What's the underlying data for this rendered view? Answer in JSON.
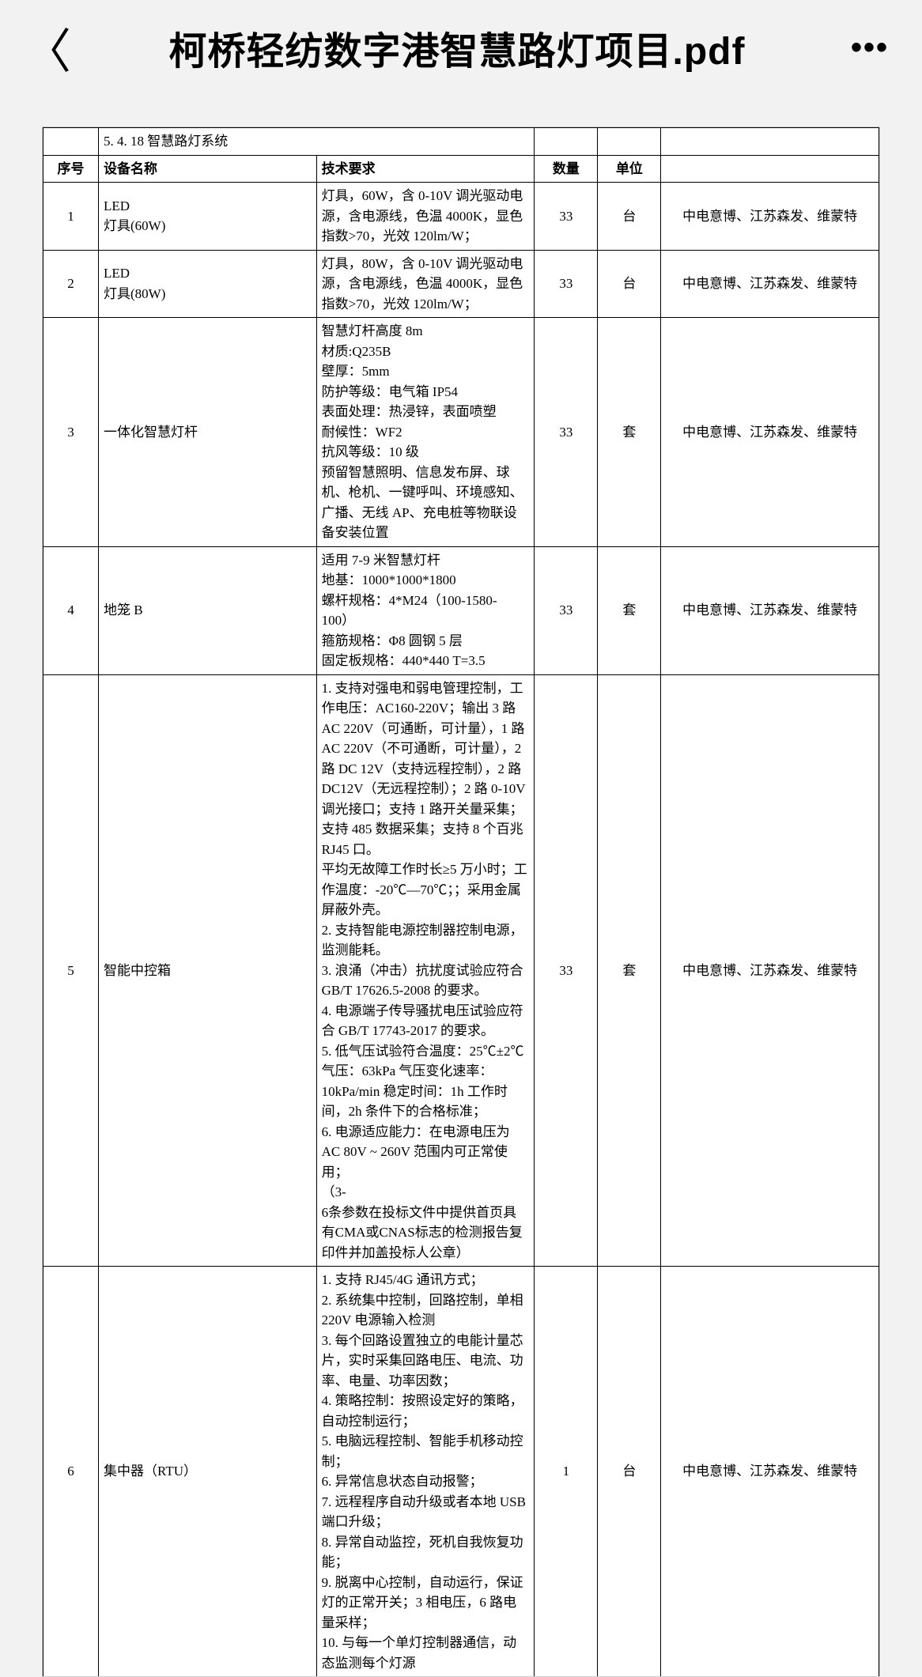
{
  "header": {
    "title": "柯桥轻纺数字港智慧路灯项目.pdf",
    "back_glyph": "〈",
    "more_glyph": "•••"
  },
  "section": {
    "number": "5. 4. 18",
    "title": "智慧路灯系统"
  },
  "columns": {
    "idx": "序号",
    "name": "设备名称",
    "req": "技术要求",
    "qty": "数量",
    "unit": "单位",
    "supp": ""
  },
  "rows": [
    {
      "idx": "1",
      "name": "LED\n灯具(60W)",
      "req": "灯具，60W，含 0-10V 调光驱动电源，含电源线，色温 4000K，显色指数>70，光效 120lm/W；",
      "qty": "33",
      "unit": "台",
      "supp": "中电意博、江苏森发、维蒙特"
    },
    {
      "idx": "2",
      "name": "LED\n灯具(80W)",
      "req": "灯具，80W，含 0-10V 调光驱动电源，含电源线，色温 4000K，显色指数>70，光效 120lm/W；",
      "qty": "33",
      "unit": "台",
      "supp": "中电意博、江苏森发、维蒙特"
    },
    {
      "idx": "3",
      "name": "一体化智慧灯杆",
      "req": "智慧灯杆高度 8m\n材质:Q235B\n壁厚：5mm\n防护等级：电气箱 IP54\n表面处理：热浸锌，表面喷塑\n耐候性：WF2\n抗风等级：10 级\n预留智慧照明、信息发布屏、球机、枪机、一键呼叫、环境感知、广播、无线 AP、充电桩等物联设\n备安装位置",
      "qty": "33",
      "unit": "套",
      "supp": "中电意博、江苏森发、维蒙特"
    },
    {
      "idx": "4",
      "name": "地笼 B",
      "req": "适用 7-9 米智慧灯杆\n地基：1000*1000*1800\n螺杆规格：4*M24（100-1580-100）\n箍筋规格：Φ8 圆钢 5 层\n固定板规格：440*440 T=3.5",
      "qty": "33",
      "unit": "套",
      "supp": "中电意博、江苏森发、维蒙特"
    },
    {
      "idx": "5",
      "name": "智能中控箱",
      "req": "1. 支持对强电和弱电管理控制，工作电压：AC160-220V；输出 3 路 AC 220V（可通断，可计量），1 路 AC 220V（不可通断，可计量），2 路 DC 12V（支持远程控制），2 路 DC12V（无远程控制）；2 路 0-10V 调光接口；支持 1 路开关量采集；支持 485 数据采集；支持 8 个百兆 RJ45 口。\n平均无故障工作时长≥5 万小时；工作温度：-20℃—70℃；；采用金属屏蔽外壳。\n2. 支持智能电源控制器控制电源，监测能耗。\n3. 浪涌（冲击）抗扰度试验应符合 GB/T 17626.5-2008 的要求。\n4. 电源端子传导骚扰电压试验应符合 GB/T 17743-2017 的要求。\n5. 低气压试验符合温度：25℃±2℃ 气压：63kPa 气压变化速率：10kPa/min 稳定时间：1h 工作时间，2h 条件下的合格标准；\n6. 电源适应能力：在电源电压为 AC 80V ~ 260V 范围内可正常使用；\n（3-\n6条参数在投标文件中提供首页具有CMA或CNAS标志的检测报告复印件并加盖投标人公章）",
      "qty": "33",
      "unit": "套",
      "supp": "中电意博、江苏森发、维蒙特"
    },
    {
      "idx": "6",
      "name": "集中器（RTU）",
      "req": "1. 支持 RJ45/4G 通讯方式；\n2. 系统集中控制，回路控制，单相 220V 电源输入检测\n3. 每个回路设置独立的电能计量芯片，实时采集回路电压、电流、功率、电量、功率因数；\n4. 策略控制：按照设定好的策略，自动控制运行；\n5. 电脑远程控制、智能手机移动控制；\n6. 异常信息状态自动报警；\n7. 远程程序自动升级或者本地 USB 端口升级；\n8. 异常自动监控，死机自我恢复功能；\n9. 脱离中心控制，自动运行，保证灯的正常开关；3 相电压，6 路电量采样；\n10. 与每一个单灯控制器通信，动态监测每个灯源",
      "qty": "1",
      "unit": "台",
      "supp": "中电意博、江苏森发、维蒙特"
    }
  ],
  "style": {
    "page_bg": "#f2f2f2",
    "paper_bg": "#ffffff",
    "border_color": "#000000",
    "text_color": "#000000",
    "title_fontsize": 48,
    "table_fontsize": 17,
    "col_widths": {
      "idx": 70,
      "name": 110,
      "req": 430,
      "qty": 80,
      "unit": 80
    }
  }
}
